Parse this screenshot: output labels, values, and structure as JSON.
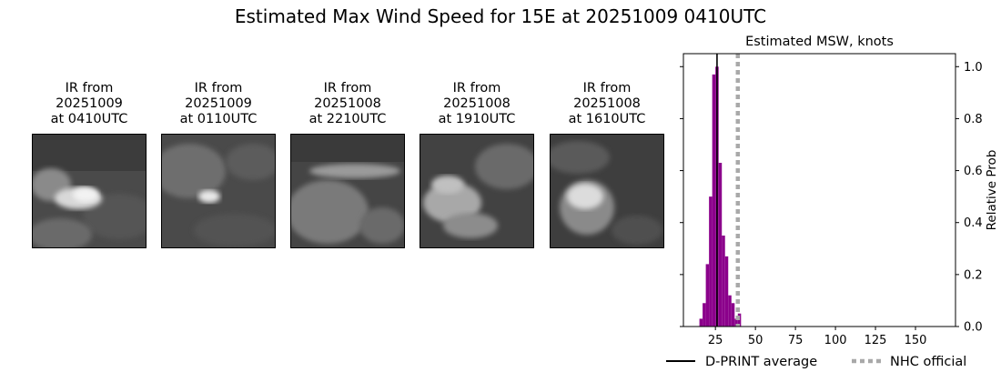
{
  "figure": {
    "title": "Estimated Max Wind Speed for 15E at 20251009 0410UTC"
  },
  "ir_panels": [
    {
      "line1": "IR from",
      "line2": "20251009",
      "line3": "at 0410UTC"
    },
    {
      "line1": "IR from",
      "line2": "20251009",
      "line3": "at 0110UTC"
    },
    {
      "line1": "IR from",
      "line2": "20251008",
      "line3": "at 2210UTC"
    },
    {
      "line1": "IR from",
      "line2": "20251008",
      "line3": "at 1910UTC"
    },
    {
      "line1": "IR from",
      "line2": "20251008",
      "line3": "at 1610UTC"
    }
  ],
  "chart_data": {
    "type": "bar",
    "title": "Estimated MSW, knots",
    "xlabel": "",
    "ylabel": "Relative Prob",
    "xlim": [
      5,
      175
    ],
    "ylim": [
      0,
      1.05
    ],
    "xticks": [
      25,
      50,
      75,
      100,
      125,
      150
    ],
    "yticks": [
      0.0,
      0.2,
      0.4,
      0.6,
      0.8,
      1.0
    ],
    "ytick_labels": [
      "0.0",
      "0.2",
      "0.4",
      "0.6",
      "0.8",
      "1.0"
    ],
    "bar_width": 2,
    "bar_color": "#8b008b",
    "bins": [
      16,
      18,
      20,
      22,
      24,
      26,
      28,
      30,
      32,
      34,
      36,
      38,
      40
    ],
    "values": [
      0.03,
      0.09,
      0.24,
      0.5,
      0.97,
      1.0,
      0.63,
      0.35,
      0.27,
      0.12,
      0.09,
      0.03,
      0.05
    ],
    "dprint_average": 26,
    "nhc_official": 39,
    "legend": {
      "position": "bottom",
      "entries": [
        {
          "label": "D-PRINT average",
          "color": "#000000",
          "style": "solid"
        },
        {
          "label": "NHC official",
          "color": "#a9a9a9",
          "style": "dotted"
        }
      ]
    }
  }
}
